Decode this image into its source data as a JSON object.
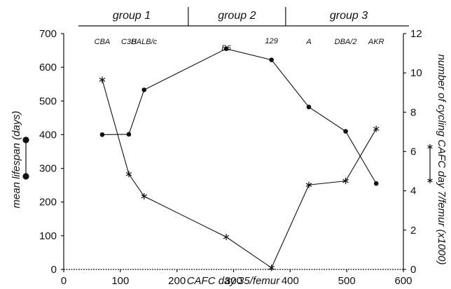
{
  "chart_data": {
    "type": "line",
    "xlabel": "CAFC day 35/femur",
    "ylabel_left": "mean lifespan (days)",
    "ylabel_right": "number of cycling CAFC day 7/femur (x1000)",
    "xlim": [
      0,
      600
    ],
    "ylim_left": [
      0,
      700
    ],
    "ylim_right": [
      0,
      12
    ],
    "x_ticks": [
      0,
      100,
      200,
      300,
      400,
      500,
      600
    ],
    "y_left_ticks": [
      0,
      100,
      200,
      300,
      400,
      500,
      600,
      700
    ],
    "y_right_ticks": [
      0,
      2,
      4,
      6,
      8,
      10,
      12
    ],
    "groups": [
      {
        "label": "group 1",
        "x_range": [
          0,
          220
        ]
      },
      {
        "label": "group 2",
        "x_range": [
          220,
          392
        ]
      },
      {
        "label": "group 3",
        "x_range": [
          392,
          600
        ]
      }
    ],
    "strains": [
      {
        "label": "CBA",
        "x": 68
      },
      {
        "label": "C3H",
        "x": 115
      },
      {
        "label": "BALB/c",
        "x": 142
      },
      {
        "label": "B6",
        "x": 287
      },
      {
        "label": "129",
        "x": 367
      },
      {
        "label": "A",
        "x": 433
      },
      {
        "label": "DBA/2",
        "x": 498
      },
      {
        "label": "AKR",
        "x": 552
      }
    ],
    "series": [
      {
        "marker": "circle",
        "axis": "left",
        "x": [
          68,
          115,
          142,
          287,
          367,
          433,
          498,
          552
        ],
        "y": [
          400,
          401,
          533,
          655,
          622,
          482,
          410,
          255
        ]
      },
      {
        "marker": "star",
        "axis": "right",
        "x": [
          68,
          115,
          142,
          287,
          367,
          433,
          498,
          552
        ],
        "y": [
          9.65,
          4.85,
          3.72,
          1.65,
          0.08,
          4.3,
          4.5,
          7.15
        ]
      }
    ]
  }
}
